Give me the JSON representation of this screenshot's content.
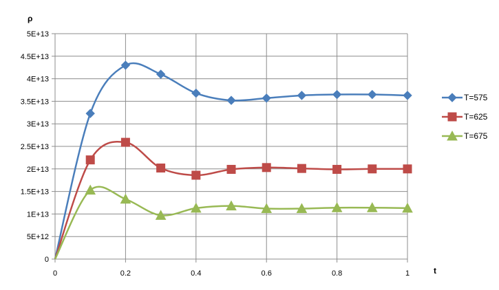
{
  "chart_data": {
    "type": "line",
    "ylabel": "ρ",
    "xlabel": "t",
    "xlim": [
      0,
      1
    ],
    "ylim": [
      0,
      50000000000000.0
    ],
    "x_ticks": [
      "0",
      "0.2",
      "0.4",
      "0.6",
      "0.8",
      "1"
    ],
    "y_ticks": [
      "0",
      "5E+12",
      "1E+13",
      "1.5E+13",
      "2E+13",
      "2.5E+13",
      "3E+13",
      "3.5E+13",
      "4E+13",
      "4.5E+13",
      "5E+13"
    ],
    "grid": "vertical and horizontal major gridlines",
    "smoothed": true,
    "legend_position": "right",
    "x": [
      0,
      0.1,
      0.2,
      0.3,
      0.4,
      0.5,
      0.6,
      0.7,
      0.8,
      0.9,
      1.0
    ],
    "series": [
      {
        "name": "T=575",
        "color": "#4a7ebb",
        "marker": "diamond",
        "values": [
          0,
          32300000000000.0,
          43000000000000.0,
          41000000000000.0,
          36800000000000.0,
          35200000000000.0,
          35700000000000.0,
          36300000000000.0,
          36500000000000.0,
          36500000000000.0,
          36300000000000.0
        ]
      },
      {
        "name": "T=625",
        "color": "#be4b48",
        "marker": "square",
        "values": [
          0,
          22000000000000.0,
          25900000000000.0,
          20200000000000.0,
          18600000000000.0,
          19900000000000.0,
          20300000000000.0,
          20100000000000.0,
          19900000000000.0,
          20000000000000.0,
          20000000000000.0
        ]
      },
      {
        "name": "T=675",
        "color": "#98b954",
        "marker": "triangle",
        "values": [
          0,
          15300000000000.0,
          13300000000000.0,
          9700000000000.0,
          11300000000000.0,
          11800000000000.0,
          11200000000000.0,
          11200000000000.0,
          11400000000000.0,
          11400000000000.0,
          11300000000000.0
        ]
      }
    ]
  }
}
